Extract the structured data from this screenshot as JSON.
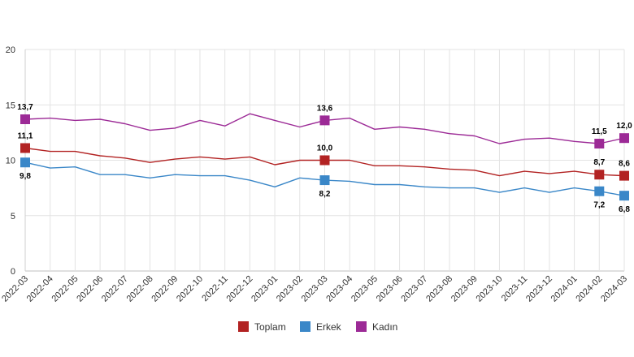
{
  "chart_data": {
    "type": "line",
    "title": "",
    "xlabel": "",
    "ylabel": "",
    "ylim": [
      0,
      20
    ],
    "yticks": [
      0,
      5,
      10,
      15,
      20
    ],
    "grid": true,
    "legend_position": "bottom-center",
    "categories": [
      "2022-03",
      "2022-04",
      "2022-05",
      "2022-06",
      "2022-07",
      "2022-08",
      "2022-09",
      "2022-10",
      "2022-11",
      "2022-12",
      "2023-01",
      "2023-02",
      "2023-03",
      "2023-04",
      "2023-05",
      "2023-06",
      "2023-07",
      "2023-08",
      "2023-09",
      "2023-10",
      "2023-11",
      "2023-12",
      "2024-01",
      "2024-02",
      "2024-03"
    ],
    "series": [
      {
        "name": "Toplam",
        "color": "#b22222",
        "values": [
          11.1,
          10.8,
          10.8,
          10.4,
          10.2,
          9.8,
          10.1,
          10.3,
          10.1,
          10.3,
          9.6,
          10.0,
          10.0,
          10.0,
          9.5,
          9.5,
          9.4,
          9.2,
          9.1,
          8.6,
          9.0,
          8.8,
          9.0,
          8.7,
          8.6
        ],
        "labeled_points": [
          {
            "index": 0,
            "text": "11,1"
          },
          {
            "index": 12,
            "text": "10,0"
          },
          {
            "index": 23,
            "text": "8,7"
          },
          {
            "index": 24,
            "text": "8,6"
          }
        ]
      },
      {
        "name": "Erkek",
        "color": "#3a87c8",
        "values": [
          9.8,
          9.3,
          9.4,
          8.7,
          8.7,
          8.4,
          8.7,
          8.6,
          8.6,
          8.2,
          7.6,
          8.4,
          8.2,
          8.1,
          7.8,
          7.8,
          7.6,
          7.5,
          7.5,
          7.1,
          7.5,
          7.1,
          7.5,
          7.2,
          6.8
        ],
        "labeled_points": [
          {
            "index": 0,
            "text": "9,8"
          },
          {
            "index": 12,
            "text": "8,2"
          },
          {
            "index": 23,
            "text": "7,2"
          },
          {
            "index": 24,
            "text": "6,8"
          }
        ]
      },
      {
        "name": "Kadın",
        "color": "#9c2a96",
        "values": [
          13.7,
          13.8,
          13.6,
          13.7,
          13.3,
          12.7,
          12.9,
          13.6,
          13.1,
          14.2,
          13.6,
          13.0,
          13.6,
          13.8,
          12.8,
          13.0,
          12.8,
          12.4,
          12.2,
          11.5,
          11.9,
          12.0,
          11.7,
          11.5,
          12.0
        ],
        "labeled_points": [
          {
            "index": 0,
            "text": "13,7"
          },
          {
            "index": 12,
            "text": "13,6"
          },
          {
            "index": 23,
            "text": "11,5"
          },
          {
            "index": 24,
            "text": "12,0"
          }
        ]
      }
    ]
  }
}
